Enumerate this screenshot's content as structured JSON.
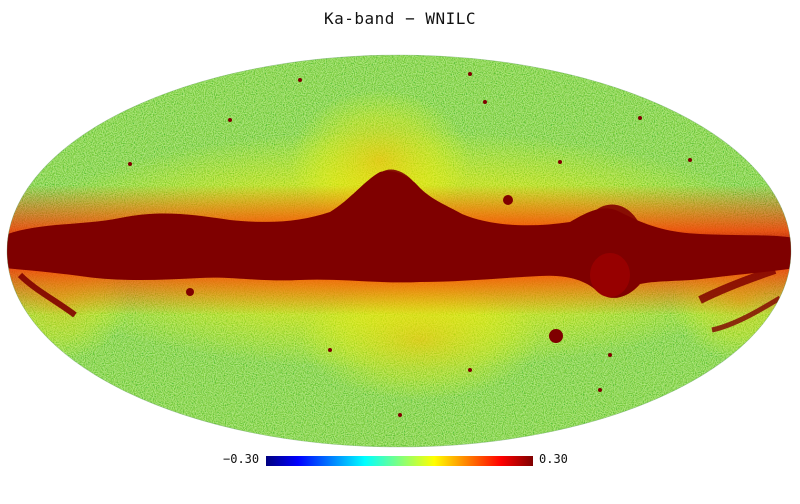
{
  "title": "Ka-band − WNILC",
  "colorbar": {
    "min_label": "−0.30",
    "max_label": "0.30",
    "min_value": -0.3,
    "max_value": 0.3,
    "colormap": "jet",
    "stops": [
      "#00007f",
      "#0000ff",
      "#00ffff",
      "#7fff7f",
      "#ffff00",
      "#ff0000",
      "#7f0000"
    ]
  },
  "map": {
    "projection": "Mollweide",
    "background_color": "#7fff7f",
    "saturated_high_color": "#7f0000"
  }
}
